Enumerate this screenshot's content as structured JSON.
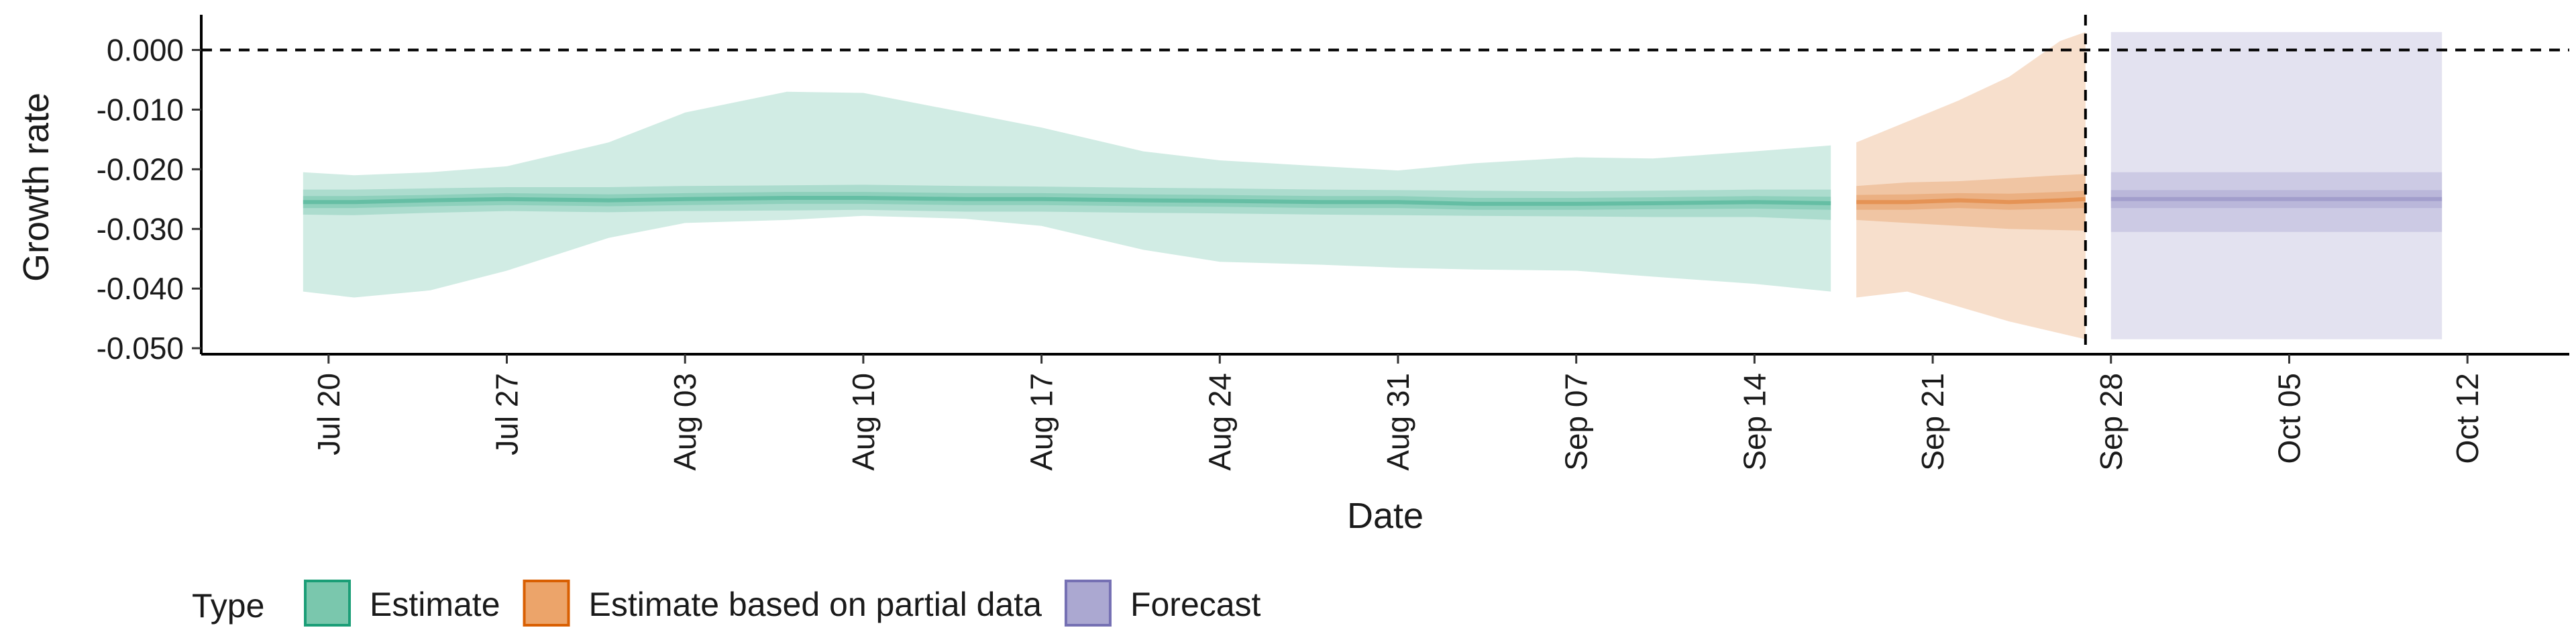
{
  "chart_data": {
    "type": "area",
    "xlabel": "Date",
    "ylabel": "Growth rate",
    "ylim": [
      -0.051,
      0.005
    ],
    "yticks": [
      {
        "value": 0.0,
        "label": "0.000"
      },
      {
        "value": -0.01,
        "label": "-0.010"
      },
      {
        "value": -0.02,
        "label": "-0.020"
      },
      {
        "value": -0.03,
        "label": "-0.030"
      },
      {
        "value": -0.04,
        "label": "-0.040"
      },
      {
        "value": -0.05,
        "label": "-0.050"
      }
    ],
    "xlim": [
      "2020-07-15",
      "2020-10-16"
    ],
    "xticks": [
      {
        "date": "2020-07-20",
        "label": "Jul 20"
      },
      {
        "date": "2020-07-27",
        "label": "Jul 27"
      },
      {
        "date": "2020-08-03",
        "label": "Aug 03"
      },
      {
        "date": "2020-08-10",
        "label": "Aug 10"
      },
      {
        "date": "2020-08-17",
        "label": "Aug 17"
      },
      {
        "date": "2020-08-24",
        "label": "Aug 24"
      },
      {
        "date": "2020-08-31",
        "label": "Aug 31"
      },
      {
        "date": "2020-09-07",
        "label": "Sep 07"
      },
      {
        "date": "2020-09-14",
        "label": "Sep 14"
      },
      {
        "date": "2020-09-21",
        "label": "Sep 21"
      },
      {
        "date": "2020-09-28",
        "label": "Sep 28"
      },
      {
        "date": "2020-10-05",
        "label": "Oct 05"
      },
      {
        "date": "2020-10-12",
        "label": "Oct 12"
      }
    ],
    "hline": 0.0,
    "vline_date": "2020-09-27",
    "grid": false,
    "legend": {
      "title": "Type",
      "placement": "bottom-left",
      "entries": [
        {
          "label": "Estimate",
          "fill": "#7ac7ad",
          "stroke": "#1b9e77"
        },
        {
          "label": "Estimate based on partial data",
          "fill": "#eca46a",
          "stroke": "#d95f02"
        },
        {
          "label": "Forecast",
          "fill": "#aba8d1",
          "stroke": "#7570b3"
        }
      ]
    },
    "series": [
      {
        "type": "Estimate",
        "color": "#1b9e77",
        "points": [
          {
            "date": "2020-07-19",
            "median": -0.0255,
            "lower20": -0.0245,
            "upper20": -0.0265,
            "lower50": -0.0234,
            "upper50": -0.0276,
            "lower90": -0.0205,
            "upper90": -0.0405
          },
          {
            "date": "2020-07-21",
            "median": -0.0255,
            "lower20": -0.0245,
            "upper20": -0.0265,
            "lower50": -0.0234,
            "upper50": -0.0277,
            "lower90": -0.021,
            "upper90": -0.0415
          },
          {
            "date": "2020-07-24",
            "median": -0.0252,
            "lower20": -0.0243,
            "upper20": -0.0262,
            "lower50": -0.0232,
            "upper50": -0.0273,
            "lower90": -0.0205,
            "upper90": -0.0403
          },
          {
            "date": "2020-07-27",
            "median": -0.025,
            "lower20": -0.024,
            "upper20": -0.026,
            "lower50": -0.023,
            "upper50": -0.027,
            "lower90": -0.0195,
            "upper90": -0.037
          },
          {
            "date": "2020-07-31",
            "median": -0.0252,
            "lower20": -0.0242,
            "upper20": -0.0262,
            "lower50": -0.023,
            "upper50": -0.0272,
            "lower90": -0.0155,
            "upper90": -0.0315
          },
          {
            "date": "2020-08-03",
            "median": -0.025,
            "lower20": -0.024,
            "upper20": -0.026,
            "lower50": -0.0228,
            "upper50": -0.027,
            "lower90": -0.0105,
            "upper90": -0.029
          },
          {
            "date": "2020-08-07",
            "median": -0.0248,
            "lower20": -0.0238,
            "upper20": -0.0258,
            "lower50": -0.0227,
            "upper50": -0.0269,
            "lower90": -0.007,
            "upper90": -0.0285
          },
          {
            "date": "2020-08-10",
            "median": -0.0248,
            "lower20": -0.0238,
            "upper20": -0.0258,
            "lower50": -0.0226,
            "upper50": -0.0268,
            "lower90": -0.0072,
            "upper90": -0.0278
          },
          {
            "date": "2020-08-14",
            "median": -0.025,
            "lower20": -0.024,
            "upper20": -0.026,
            "lower50": -0.0228,
            "upper50": -0.0271,
            "lower90": -0.0105,
            "upper90": -0.0283
          },
          {
            "date": "2020-08-17",
            "median": -0.025,
            "lower20": -0.024,
            "upper20": -0.026,
            "lower50": -0.0229,
            "upper50": -0.0271,
            "lower90": -0.013,
            "upper90": -0.0295
          },
          {
            "date": "2020-08-21",
            "median": -0.0252,
            "lower20": -0.0242,
            "upper20": -0.0262,
            "lower50": -0.0231,
            "upper50": -0.0273,
            "lower90": -0.017,
            "upper90": -0.0335
          },
          {
            "date": "2020-08-24",
            "median": -0.0253,
            "lower20": -0.0243,
            "upper20": -0.0263,
            "lower50": -0.0232,
            "upper50": -0.0274,
            "lower90": -0.0185,
            "upper90": -0.0355
          },
          {
            "date": "2020-08-28",
            "median": -0.0255,
            "lower20": -0.0245,
            "upper20": -0.0265,
            "lower50": -0.0234,
            "upper50": -0.0276,
            "lower90": -0.0195,
            "upper90": -0.036
          },
          {
            "date": "2020-08-31",
            "median": -0.0255,
            "lower20": -0.0245,
            "upper20": -0.0265,
            "lower50": -0.0235,
            "upper50": -0.0277,
            "lower90": -0.0202,
            "upper90": -0.0365
          },
          {
            "date": "2020-09-03",
            "median": -0.0258,
            "lower20": -0.0248,
            "upper20": -0.0268,
            "lower50": -0.0236,
            "upper50": -0.0278,
            "lower90": -0.019,
            "upper90": -0.0368
          },
          {
            "date": "2020-09-07",
            "median": -0.0258,
            "lower20": -0.0248,
            "upper20": -0.0268,
            "lower50": -0.0237,
            "upper50": -0.0279,
            "lower90": -0.018,
            "upper90": -0.037
          },
          {
            "date": "2020-09-10",
            "median": -0.0257,
            "lower20": -0.0247,
            "upper20": -0.0267,
            "lower50": -0.0236,
            "upper50": -0.028,
            "lower90": -0.0182,
            "upper90": -0.038
          },
          {
            "date": "2020-09-14",
            "median": -0.0255,
            "lower20": -0.0245,
            "upper20": -0.0266,
            "lower50": -0.0234,
            "upper50": -0.028,
            "lower90": -0.017,
            "upper90": -0.0392
          },
          {
            "date": "2020-09-17",
            "median": -0.0257,
            "lower20": -0.0246,
            "upper20": -0.0268,
            "lower50": -0.0234,
            "upper50": -0.0285,
            "lower90": -0.016,
            "upper90": -0.0405
          }
        ]
      },
      {
        "type": "Estimate based on partial data",
        "color": "#d95f02",
        "points": [
          {
            "date": "2020-09-18",
            "median": -0.0255,
            "lower20": -0.0243,
            "upper20": -0.0268,
            "lower50": -0.0228,
            "upper50": -0.0285,
            "lower90": -0.0155,
            "upper90": -0.0415
          },
          {
            "date": "2020-09-20",
            "median": -0.0255,
            "lower20": -0.0242,
            "upper20": -0.0268,
            "lower50": -0.0222,
            "upper50": -0.029,
            "lower90": -0.012,
            "upper90": -0.0405
          },
          {
            "date": "2020-09-22",
            "median": -0.0252,
            "lower20": -0.024,
            "upper20": -0.0265,
            "lower50": -0.022,
            "upper50": -0.0295,
            "lower90": -0.0085,
            "upper90": -0.043
          },
          {
            "date": "2020-09-24",
            "median": -0.0255,
            "lower20": -0.0241,
            "upper20": -0.0268,
            "lower50": -0.0215,
            "upper50": -0.03,
            "lower90": -0.0045,
            "upper90": -0.0455
          },
          {
            "date": "2020-09-26",
            "median": -0.0252,
            "lower20": -0.0238,
            "upper20": -0.0266,
            "lower50": -0.021,
            "upper50": -0.0302,
            "lower90": 0.0015,
            "upper90": -0.0475
          },
          {
            "date": "2020-09-27",
            "median": -0.025,
            "lower20": -0.0236,
            "upper20": -0.0265,
            "lower50": -0.0208,
            "upper50": -0.0303,
            "lower90": 0.003,
            "upper90": -0.0485
          }
        ]
      },
      {
        "type": "Forecast",
        "color": "#7570b3",
        "points": [
          {
            "date": "2020-09-28",
            "median": -0.025,
            "lower20": -0.0235,
            "upper20": -0.0265,
            "lower50": -0.0205,
            "upper50": -0.0305,
            "lower90": 0.003,
            "upper90": -0.0485
          },
          {
            "date": "2020-10-11",
            "median": -0.025,
            "lower20": -0.0235,
            "upper20": -0.0265,
            "lower50": -0.0205,
            "upper50": -0.0305,
            "lower90": 0.003,
            "upper90": -0.0485
          }
        ]
      }
    ]
  }
}
